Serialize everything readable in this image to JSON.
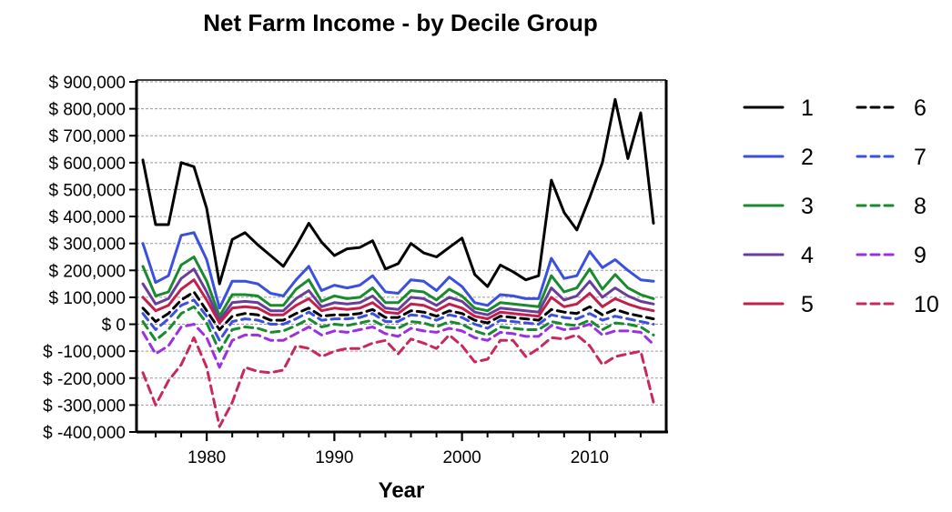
{
  "chart_data": {
    "type": "line",
    "title": "Net Farm Income - by Decile Group",
    "xlabel": "Year",
    "ylabel": "",
    "xlim": [
      1974.5,
      2016
    ],
    "ylim": [
      -400000,
      900000
    ],
    "yticks": [
      -400000,
      -300000,
      -200000,
      -100000,
      0,
      100000,
      200000,
      300000,
      400000,
      500000,
      600000,
      700000,
      800000,
      900000
    ],
    "ytick_labels": [
      "$ -400,000",
      "$ -300,000",
      "$ -200,000",
      "$ -100,000",
      "$ 0",
      "$ 100,000",
      "$ 200,000",
      "$ 300,000",
      "$ 400,000",
      "$ 500,000",
      "$ 600,000",
      "$ 700,000",
      "$ 800,000",
      "$ 900,000"
    ],
    "xticks": [
      1980,
      1990,
      2000,
      2010
    ],
    "xtick_labels": [
      "1980",
      "1990",
      "2000",
      "2010"
    ],
    "grid": "horizontal-dashed",
    "legend_position": "right",
    "x": [
      1975,
      1976,
      1977,
      1978,
      1979,
      1980,
      1981,
      1982,
      1983,
      1984,
      1985,
      1986,
      1987,
      1988,
      1989,
      1990,
      1991,
      1992,
      1993,
      1994,
      1995,
      1996,
      1997,
      1998,
      1999,
      2000,
      2001,
      2002,
      2003,
      2004,
      2005,
      2006,
      2007,
      2008,
      2009,
      2010,
      2011,
      2012,
      2013,
      2014,
      2015
    ],
    "series": [
      {
        "name": "1",
        "color": "#000000",
        "dash": "solid",
        "values": [
          610000,
          370000,
          370000,
          600000,
          585000,
          430000,
          150000,
          315000,
          340000,
          295000,
          255000,
          215000,
          290000,
          375000,
          305000,
          255000,
          280000,
          285000,
          310000,
          205000,
          225000,
          300000,
          265000,
          250000,
          285000,
          320000,
          185000,
          140000,
          220000,
          195000,
          165000,
          180000,
          535000,
          415000,
          350000,
          470000,
          600000,
          835000,
          615000,
          785000,
          375000
        ]
      },
      {
        "name": "2",
        "color": "#3b4fe0",
        "dash": "solid",
        "values": [
          300000,
          155000,
          180000,
          330000,
          340000,
          240000,
          60000,
          160000,
          160000,
          150000,
          115000,
          105000,
          165000,
          215000,
          125000,
          145000,
          135000,
          145000,
          180000,
          120000,
          115000,
          165000,
          160000,
          125000,
          175000,
          140000,
          80000,
          70000,
          110000,
          105000,
          95000,
          95000,
          245000,
          170000,
          180000,
          270000,
          210000,
          240000,
          200000,
          165000,
          160000
        ]
      },
      {
        "name": "3",
        "color": "#1a8a2e",
        "dash": "solid",
        "values": [
          215000,
          105000,
          120000,
          220000,
          250000,
          160000,
          30000,
          110000,
          110000,
          105000,
          70000,
          70000,
          130000,
          165000,
          85000,
          105000,
          95000,
          100000,
          135000,
          80000,
          80000,
          125000,
          120000,
          90000,
          130000,
          105000,
          60000,
          50000,
          80000,
          75000,
          70000,
          65000,
          180000,
          120000,
          135000,
          205000,
          130000,
          185000,
          135000,
          110000,
          95000
        ]
      },
      {
        "name": "4",
        "color": "#6a3d9a",
        "dash": "solid",
        "values": [
          150000,
          75000,
          95000,
          170000,
          205000,
          120000,
          15000,
          80000,
          85000,
          80000,
          50000,
          50000,
          95000,
          125000,
          65000,
          80000,
          75000,
          80000,
          105000,
          60000,
          55000,
          100000,
          95000,
          70000,
          100000,
          85000,
          45000,
          35000,
          60000,
          55000,
          50000,
          45000,
          135000,
          90000,
          105000,
          160000,
          100000,
          135000,
          105000,
          85000,
          75000
        ]
      },
      {
        "name": "5",
        "color": "#c0204a",
        "dash": "solid",
        "values": [
          100000,
          50000,
          70000,
          130000,
          165000,
          90000,
          5000,
          60000,
          65000,
          60000,
          35000,
          35000,
          70000,
          95000,
          50000,
          60000,
          55000,
          60000,
          80000,
          45000,
          40000,
          75000,
          70000,
          50000,
          75000,
          60000,
          30000,
          20000,
          45000,
          40000,
          35000,
          30000,
          100000,
          65000,
          75000,
          115000,
          65000,
          95000,
          75000,
          60000,
          50000
        ]
      },
      {
        "name": "6",
        "color": "#000000",
        "dash": "dashed",
        "values": [
          60000,
          10000,
          40000,
          90000,
          120000,
          50000,
          -20000,
          30000,
          40000,
          35000,
          15000,
          15000,
          40000,
          60000,
          30000,
          35000,
          35000,
          40000,
          55000,
          25000,
          25000,
          50000,
          45000,
          30000,
          50000,
          40000,
          15000,
          5000,
          30000,
          25000,
          20000,
          15000,
          55000,
          45000,
          40000,
          65000,
          35000,
          55000,
          40000,
          30000,
          20000
        ]
      },
      {
        "name": "7",
        "color": "#3b4fe0",
        "dash": "dashed",
        "values": [
          40000,
          -20000,
          20000,
          70000,
          90000,
          30000,
          -60000,
          10000,
          20000,
          15000,
          0,
          0,
          20000,
          45000,
          15000,
          20000,
          20000,
          25000,
          40000,
          10000,
          10000,
          35000,
          30000,
          15000,
          35000,
          25000,
          0,
          -15000,
          15000,
          10000,
          5000,
          0,
          35000,
          25000,
          20000,
          40000,
          15000,
          30000,
          20000,
          10000,
          0
        ]
      },
      {
        "name": "8",
        "color": "#1a8a2e",
        "dash": "dashed",
        "values": [
          10000,
          -60000,
          -20000,
          40000,
          65000,
          5000,
          -100000,
          -20000,
          -10000,
          -15000,
          -30000,
          -25000,
          -5000,
          20000,
          -10000,
          0,
          -5000,
          5000,
          15000,
          -10000,
          -15000,
          10000,
          5000,
          -10000,
          10000,
          0,
          -25000,
          -40000,
          -10000,
          -15000,
          -20000,
          -20000,
          10000,
          0,
          -5000,
          15000,
          -20000,
          5000,
          0,
          -10000,
          -40000
        ]
      },
      {
        "name": "9",
        "color": "#9b30e0",
        "dash": "dashed",
        "values": [
          -30000,
          -110000,
          -80000,
          -10000,
          0,
          -50000,
          -160000,
          -60000,
          -40000,
          -40000,
          -60000,
          -60000,
          -35000,
          -10000,
          -40000,
          -25000,
          -30000,
          -20000,
          -10000,
          -35000,
          -45000,
          -15000,
          -25000,
          -30000,
          -15000,
          -25000,
          -50000,
          -60000,
          -30000,
          -35000,
          -45000,
          -45000,
          -5000,
          -20000,
          -15000,
          0,
          -40000,
          -25000,
          -25000,
          -30000,
          -75000
        ]
      },
      {
        "name": "10",
        "color": "#c8295a",
        "dash": "dashed",
        "values": [
          -180000,
          -300000,
          -210000,
          -150000,
          -50000,
          -160000,
          -380000,
          -290000,
          -160000,
          -175000,
          -180000,
          -170000,
          -80000,
          -90000,
          -120000,
          -100000,
          -90000,
          -90000,
          -70000,
          -60000,
          -110000,
          -55000,
          -70000,
          -90000,
          -40000,
          -80000,
          -140000,
          -130000,
          -60000,
          -60000,
          -120000,
          -90000,
          -50000,
          -55000,
          -40000,
          -80000,
          -150000,
          -120000,
          -110000,
          -100000,
          -290000
        ]
      }
    ]
  }
}
